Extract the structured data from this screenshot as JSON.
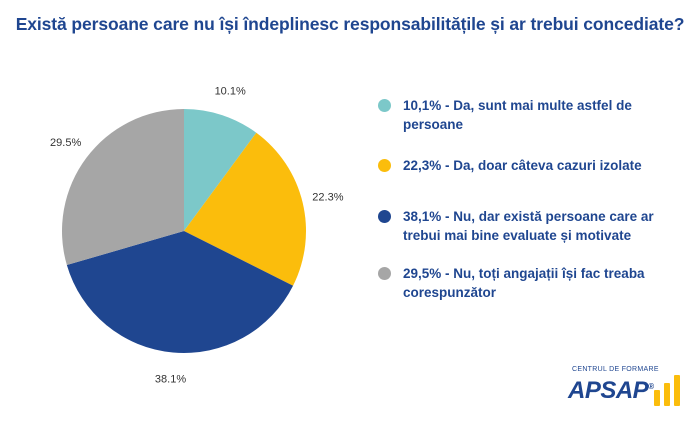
{
  "title": "Există persoane care nu își îndeplinesc responsabilitățile și ar trebui concediate?",
  "chart_data": {
    "type": "pie",
    "slices": [
      {
        "value": 10.1,
        "label": "10.1%",
        "color": "#7cc8c9"
      },
      {
        "value": 22.3,
        "label": "22.3%",
        "color": "#fbbd0c"
      },
      {
        "value": 38.1,
        "label": "38.1%",
        "color": "#1f4690"
      },
      {
        "value": 29.5,
        "label": "29.5%",
        "color": "#a6a6a6"
      }
    ]
  },
  "legend": [
    {
      "text": "10,1% - Da, sunt mai multe astfel de persoane",
      "color": "#7cc8c9"
    },
    {
      "text": "22,3% - Da, doar câteva cazuri izolate",
      "color": "#fbbd0c"
    },
    {
      "text": "38,1% - Nu, dar există persoane care ar trebui mai bine evaluate și motivate",
      "color": "#1f4690"
    },
    {
      "text": "29,5% - Nu, toți angajații își fac treaba corespunzător",
      "color": "#a6a6a6"
    }
  ],
  "logo": {
    "subtitle": "CENTRUL DE FORMARE",
    "name": "APSAP",
    "mark": "®",
    "accent_color": "#fbbd0c",
    "brand_color": "#1f4690"
  }
}
